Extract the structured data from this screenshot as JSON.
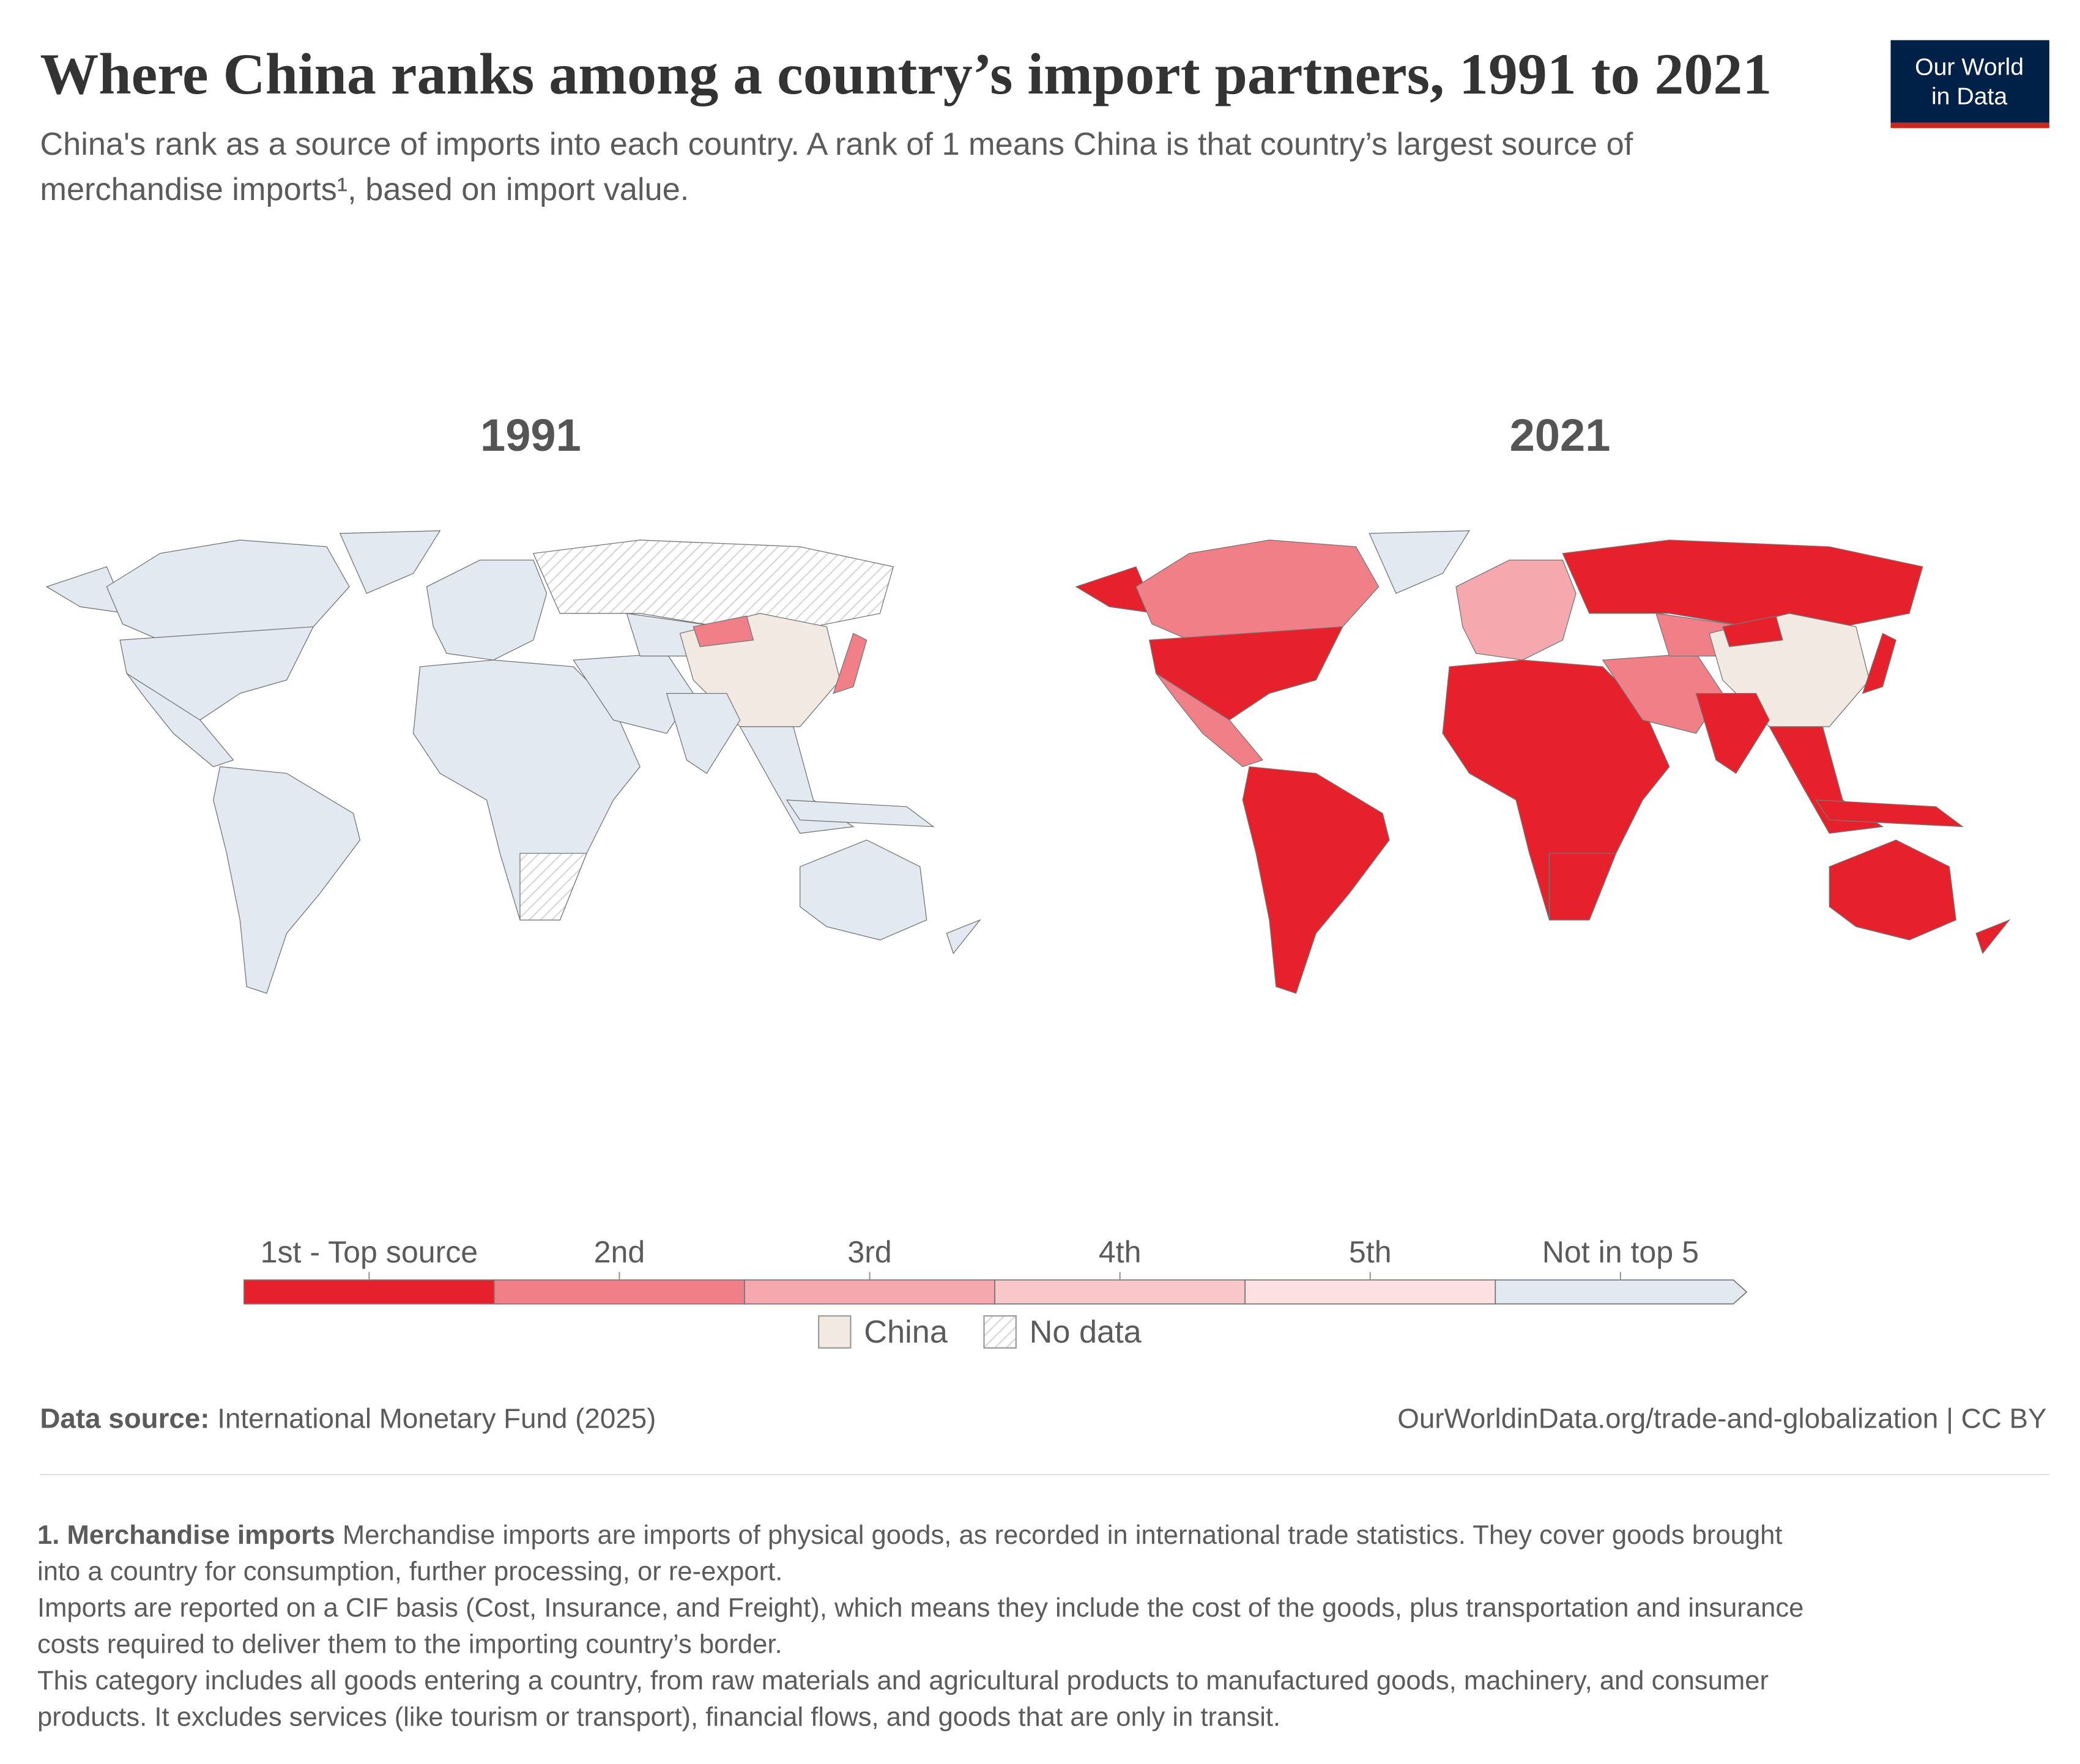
{
  "header": {
    "title": "Where China ranks among a country’s import partners, 1991 to 2021",
    "subtitle": [
      "China's rank as a source of imports into each country. A rank of 1 means China is that country’s largest source of",
      "merchandise imports¹, based on import value."
    ],
    "logo": [
      "Our World",
      "in Data"
    ]
  },
  "chart_data": {
    "type": "map",
    "panels": [
      {
        "title": "1991"
      },
      {
        "title": "2021"
      }
    ],
    "legend": {
      "bins": [
        {
          "label": "1st - Top source",
          "color": "#e6212b"
        },
        {
          "label": "2nd",
          "color": "#f07f88"
        },
        {
          "label": "3rd",
          "color": "#f5a9ae"
        },
        {
          "label": "4th",
          "color": "#f9c7ca"
        },
        {
          "label": "5th",
          "color": "#fce0e2"
        },
        {
          "label": "Not in top 5",
          "color": "#e3e9f0"
        }
      ],
      "extra": [
        {
          "label": "China",
          "color": "#f2e9e3"
        },
        {
          "label": "No data",
          "color": "#d6d6d6"
        }
      ]
    }
  },
  "footer": {
    "source_label": "Data source:",
    "source": "International Monetary Fund (2025)",
    "url": "OurWorldinData.org/trade-and-globalization | CC BY",
    "note_title": "1. Merchandise imports",
    "note_lines": [
      "Merchandise imports are imports of physical goods, as recorded in international trade statistics. They cover goods brought",
      "into a country for consumption, further processing, or re-export.",
      "Imports are reported on a CIF basis (Cost, Insurance, and Freight), which means they include the cost of the goods, plus transportation and insurance",
      "costs required to deliver them to the importing country’s border.",
      "This category includes all goods entering a country, from raw materials and agricultural products to manufactured goods, machinery, and consumer",
      "products. It excludes services (like tourism or transport), financial flows, and goods that are only in transit."
    ]
  }
}
